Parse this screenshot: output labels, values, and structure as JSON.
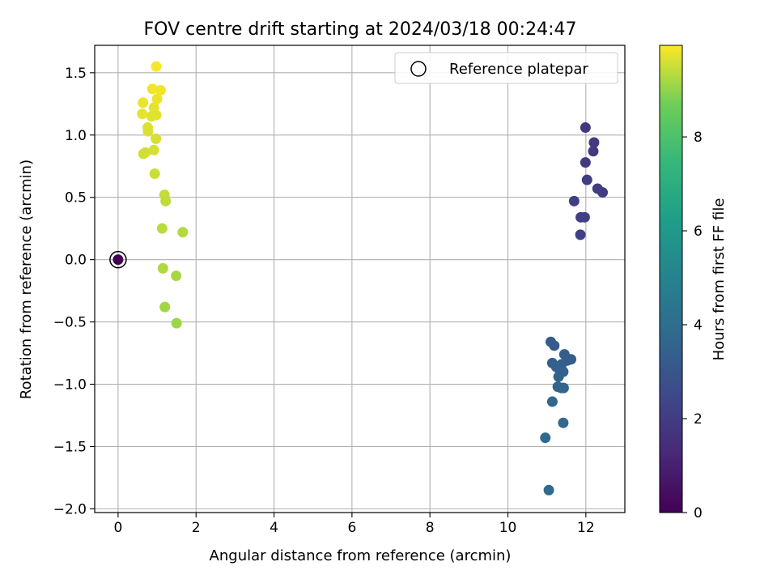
{
  "chart_data": {
    "type": "scatter",
    "title": "FOV centre drift starting at 2024/03/18 00:24:47",
    "xlabel": "Angular distance from reference (arcmin)",
    "ylabel": "Rotation from reference (arcmin)",
    "xlim": [
      -0.6,
      13.0
    ],
    "ylim": [
      -2.03,
      1.72
    ],
    "xticks": [
      0,
      2,
      4,
      6,
      8,
      10,
      12
    ],
    "yticks": [
      -2.0,
      -1.5,
      -1.0,
      -0.5,
      0.0,
      0.5,
      1.0,
      1.5
    ],
    "xtick_labels": [
      "0",
      "2",
      "4",
      "6",
      "8",
      "10",
      "12"
    ],
    "ytick_labels": [
      "−2.0",
      "−1.5",
      "−1.0",
      "−0.5",
      "0.0",
      "0.5",
      "1.0",
      "1.5"
    ],
    "grid": true,
    "legend": {
      "placement": "top-right",
      "label": "Reference platepar"
    },
    "reference_point": {
      "x": 0,
      "y": 0,
      "c": 0.0
    },
    "colorbar": {
      "label": "Hours from first FF file",
      "range": [
        0,
        9.95
      ],
      "ticks": [
        0,
        2,
        4,
        6,
        8
      ],
      "tick_labels": [
        "0",
        "2",
        "4",
        "6",
        "8"
      ]
    },
    "points": [
      {
        "x": 0.0,
        "y": 0.0,
        "c": 0.0
      },
      {
        "x": 11.99,
        "y": 1.06,
        "c": 1.85
      },
      {
        "x": 12.21,
        "y": 0.94,
        "c": 1.9
      },
      {
        "x": 12.19,
        "y": 0.87,
        "c": 1.9
      },
      {
        "x": 11.99,
        "y": 0.78,
        "c": 1.95
      },
      {
        "x": 12.03,
        "y": 0.64,
        "c": 2.0
      },
      {
        "x": 12.3,
        "y": 0.57,
        "c": 2.0
      },
      {
        "x": 12.43,
        "y": 0.54,
        "c": 2.05
      },
      {
        "x": 11.7,
        "y": 0.47,
        "c": 2.1
      },
      {
        "x": 11.87,
        "y": 0.34,
        "c": 2.1
      },
      {
        "x": 11.97,
        "y": 0.34,
        "c": 2.15
      },
      {
        "x": 11.86,
        "y": 0.2,
        "c": 2.2
      },
      {
        "x": 11.1,
        "y": -0.66,
        "c": 3.2
      },
      {
        "x": 11.19,
        "y": -0.69,
        "c": 3.25
      },
      {
        "x": 11.45,
        "y": -0.76,
        "c": 3.3
      },
      {
        "x": 11.62,
        "y": -0.8,
        "c": 3.3
      },
      {
        "x": 11.52,
        "y": -0.81,
        "c": 3.35
      },
      {
        "x": 11.14,
        "y": -0.83,
        "c": 3.4
      },
      {
        "x": 11.38,
        "y": -0.84,
        "c": 3.4
      },
      {
        "x": 11.24,
        "y": -0.86,
        "c": 3.45
      },
      {
        "x": 11.32,
        "y": -0.88,
        "c": 3.5
      },
      {
        "x": 11.42,
        "y": -0.9,
        "c": 3.5
      },
      {
        "x": 11.3,
        "y": -0.94,
        "c": 3.55
      },
      {
        "x": 11.28,
        "y": -1.02,
        "c": 3.6
      },
      {
        "x": 11.37,
        "y": -1.03,
        "c": 3.6
      },
      {
        "x": 11.43,
        "y": -1.03,
        "c": 3.65
      },
      {
        "x": 11.14,
        "y": -1.14,
        "c": 3.7
      },
      {
        "x": 11.42,
        "y": -1.31,
        "c": 3.75
      },
      {
        "x": 10.96,
        "y": -1.43,
        "c": 3.8
      },
      {
        "x": 11.05,
        "y": -1.85,
        "c": 3.85
      },
      {
        "x": 0.98,
        "y": 1.55,
        "c": 9.9
      },
      {
        "x": 0.88,
        "y": 1.37,
        "c": 9.85
      },
      {
        "x": 1.09,
        "y": 1.36,
        "c": 9.85
      },
      {
        "x": 1.0,
        "y": 1.29,
        "c": 9.8
      },
      {
        "x": 0.64,
        "y": 1.26,
        "c": 9.8
      },
      {
        "x": 0.92,
        "y": 1.22,
        "c": 9.75
      },
      {
        "x": 0.62,
        "y": 1.17,
        "c": 9.75
      },
      {
        "x": 0.98,
        "y": 1.16,
        "c": 9.7
      },
      {
        "x": 0.86,
        "y": 1.15,
        "c": 9.7
      },
      {
        "x": 0.76,
        "y": 1.06,
        "c": 9.65
      },
      {
        "x": 0.77,
        "y": 1.03,
        "c": 9.65
      },
      {
        "x": 0.97,
        "y": 0.97,
        "c": 9.6
      },
      {
        "x": 0.92,
        "y": 0.88,
        "c": 9.6
      },
      {
        "x": 0.7,
        "y": 0.86,
        "c": 9.55
      },
      {
        "x": 0.65,
        "y": 0.85,
        "c": 9.55
      },
      {
        "x": 0.94,
        "y": 0.69,
        "c": 9.5
      },
      {
        "x": 1.19,
        "y": 0.52,
        "c": 9.45
      },
      {
        "x": 1.22,
        "y": 0.47,
        "c": 9.4
      },
      {
        "x": 1.13,
        "y": 0.25,
        "c": 9.35
      },
      {
        "x": 1.66,
        "y": 0.22,
        "c": 9.3
      },
      {
        "x": 1.15,
        "y": -0.07,
        "c": 9.25
      },
      {
        "x": 1.49,
        "y": -0.13,
        "c": 9.2
      },
      {
        "x": 1.2,
        "y": -0.38,
        "c": 9.15
      },
      {
        "x": 1.5,
        "y": -0.51,
        "c": 9.1
      }
    ]
  }
}
